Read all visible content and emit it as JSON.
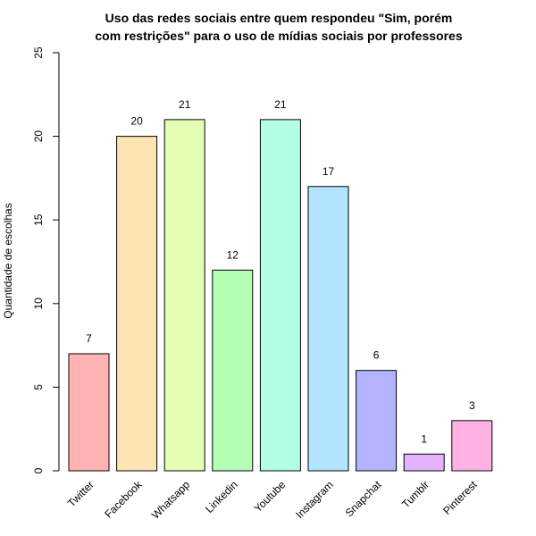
{
  "chart_data": {
    "type": "bar",
    "title_lines": [
      "Uso das redes sociais entre quem respondeu \"Sim, porém",
      "com restrições\" para o uso de mídias sociais por professores"
    ],
    "xlabel": "",
    "ylabel": "Quantidade de escolhas",
    "ylim": [
      0,
      25
    ],
    "yticks": [
      0,
      5,
      10,
      15,
      20,
      25
    ],
    "categories": [
      "Twitter",
      "Facebook",
      "Whatsapp",
      "Linkedin",
      "Youtube",
      "Instagram",
      "Snapchat",
      "Tumblr",
      "Pinterest"
    ],
    "values": [
      7,
      20,
      21,
      12,
      21,
      17,
      6,
      1,
      3
    ],
    "colors": [
      "#FFB3B3",
      "#FFE4B3",
      "#E4FFB3",
      "#B3FFB3",
      "#B3FFE4",
      "#B3E4FF",
      "#B3B3FF",
      "#E4B3FF",
      "#FFB3E4"
    ],
    "grid": false,
    "legend": "none"
  }
}
